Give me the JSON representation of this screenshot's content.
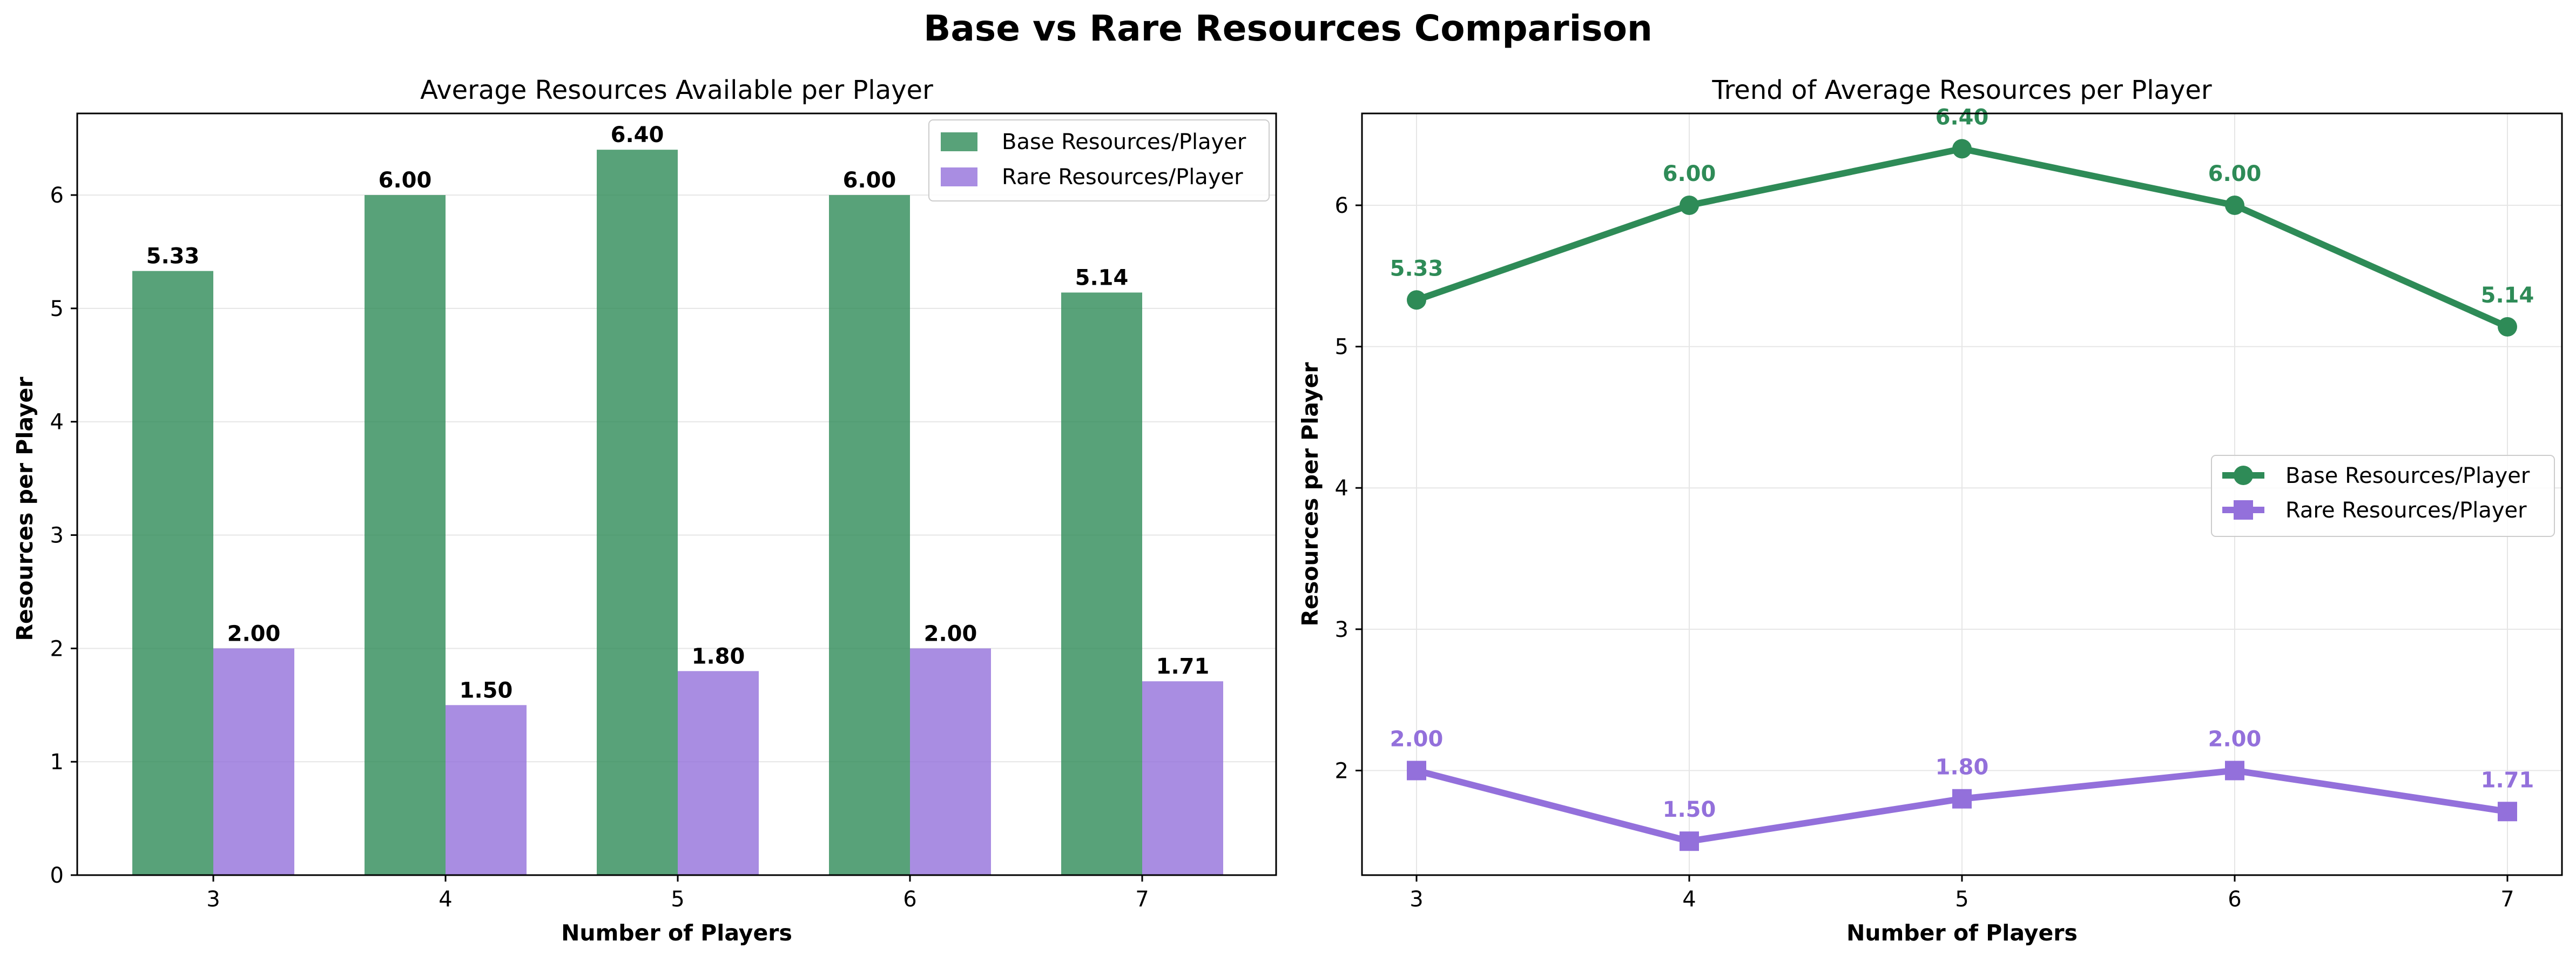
{
  "figure": {
    "title": "Base vs Rare Resources Comparison"
  },
  "chart_data": [
    {
      "type": "bar",
      "title": "Average Resources Available per Player",
      "xlabel": "Number of Players",
      "ylabel": "Resources per Player",
      "categories": [
        "3",
        "4",
        "5",
        "6",
        "7"
      ],
      "ylim": [
        0,
        6.72
      ],
      "yticks": [
        0,
        1,
        2,
        3,
        4,
        5,
        6
      ],
      "grid": "y",
      "legend_position": "top-right",
      "series": [
        {
          "name": "Base Resources/Player",
          "values": [
            5.33,
            6.0,
            6.4,
            6.0,
            5.14
          ],
          "labels": [
            "5.33",
            "6.00",
            "6.40",
            "6.00",
            "5.14"
          ],
          "color": "#2e8b57"
        },
        {
          "name": "Rare Resources/Player",
          "values": [
            2.0,
            1.5,
            1.8,
            2.0,
            1.71
          ],
          "labels": [
            "2.00",
            "1.50",
            "1.80",
            "2.00",
            "1.71"
          ],
          "color": "#9370db"
        }
      ]
    },
    {
      "type": "line",
      "title": "Trend of Average Resources per Player",
      "xlabel": "Number of Players",
      "ylabel": "Resources per Player",
      "x": [
        "3",
        "4",
        "5",
        "6",
        "7"
      ],
      "ylim": [
        1.26,
        6.65
      ],
      "yticks": [
        2,
        3,
        4,
        5,
        6
      ],
      "grid": "both",
      "legend_position": "center-right",
      "series": [
        {
          "name": "Base Resources/Player",
          "values": [
            5.33,
            6.0,
            6.4,
            6.0,
            5.14
          ],
          "labels": [
            "5.33",
            "6.00",
            "6.40",
            "6.00",
            "5.14"
          ],
          "color": "#2e8b57",
          "marker": "circle"
        },
        {
          "name": "Rare Resources/Player",
          "values": [
            2.0,
            1.5,
            1.8,
            2.0,
            1.71
          ],
          "labels": [
            "2.00",
            "1.50",
            "1.80",
            "2.00",
            "1.71"
          ],
          "color": "#9370db",
          "marker": "square"
        }
      ]
    }
  ]
}
